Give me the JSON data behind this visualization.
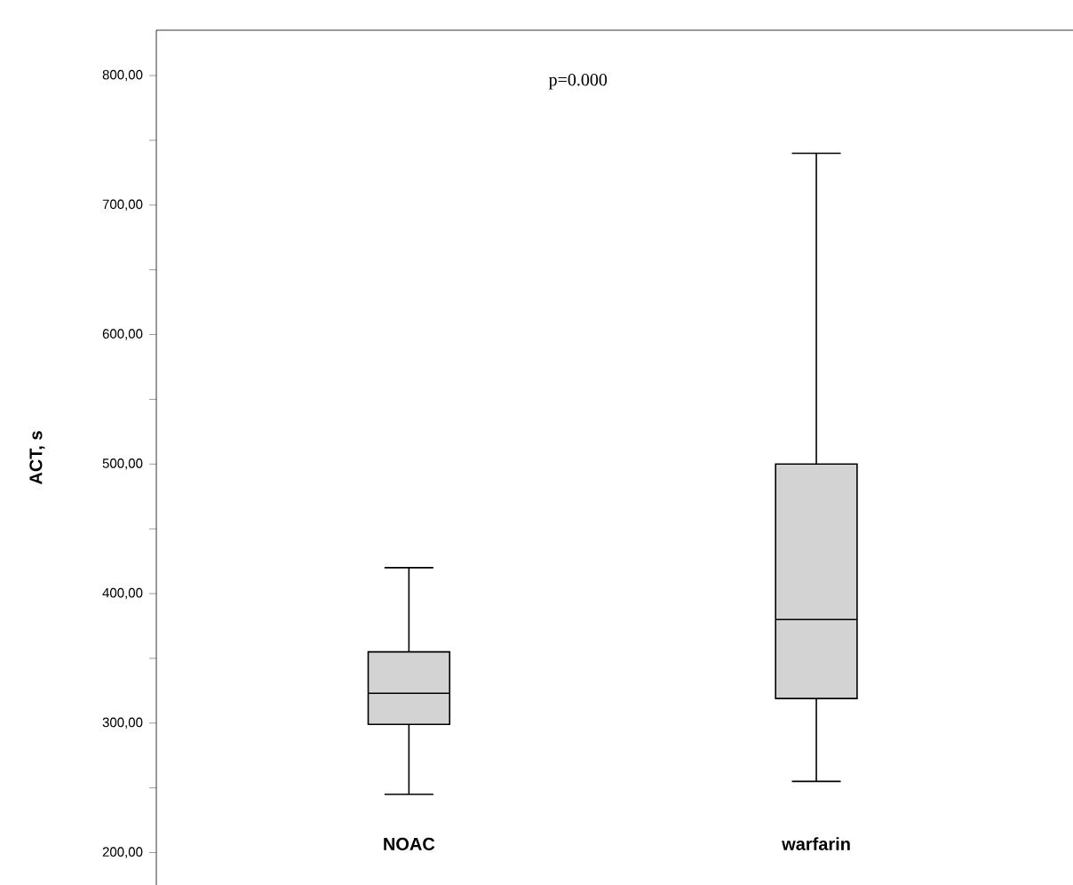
{
  "chart_data": {
    "type": "box",
    "ylabel": "ACT, s",
    "categories": [
      "NOAC",
      "warfarin"
    ],
    "color": "#d3d3d3",
    "boxes": [
      {
        "low": 245,
        "q1": 299,
        "median": 323,
        "q3": 355,
        "high": 420
      },
      {
        "low": 255,
        "q1": 319,
        "median": 380,
        "q3": 500,
        "high": 740
      }
    ],
    "ylim": [
      175,
      835
    ],
    "yticks": [
      {
        "value": 200,
        "label": "200,00"
      },
      {
        "value": 250,
        "label": null
      },
      {
        "value": 300,
        "label": "300,00"
      },
      {
        "value": 350,
        "label": null
      },
      {
        "value": 400,
        "label": "400,00"
      },
      {
        "value": 450,
        "label": null
      },
      {
        "value": 500,
        "label": "500,00"
      },
      {
        "value": 550,
        "label": null
      },
      {
        "value": 600,
        "label": "600,00"
      },
      {
        "value": 650,
        "label": null
      },
      {
        "value": 700,
        "label": "700,00"
      },
      {
        "value": 750,
        "label": null
      },
      {
        "value": 800,
        "label": "800,00"
      }
    ],
    "annotations": [
      "p=0.000"
    ]
  }
}
